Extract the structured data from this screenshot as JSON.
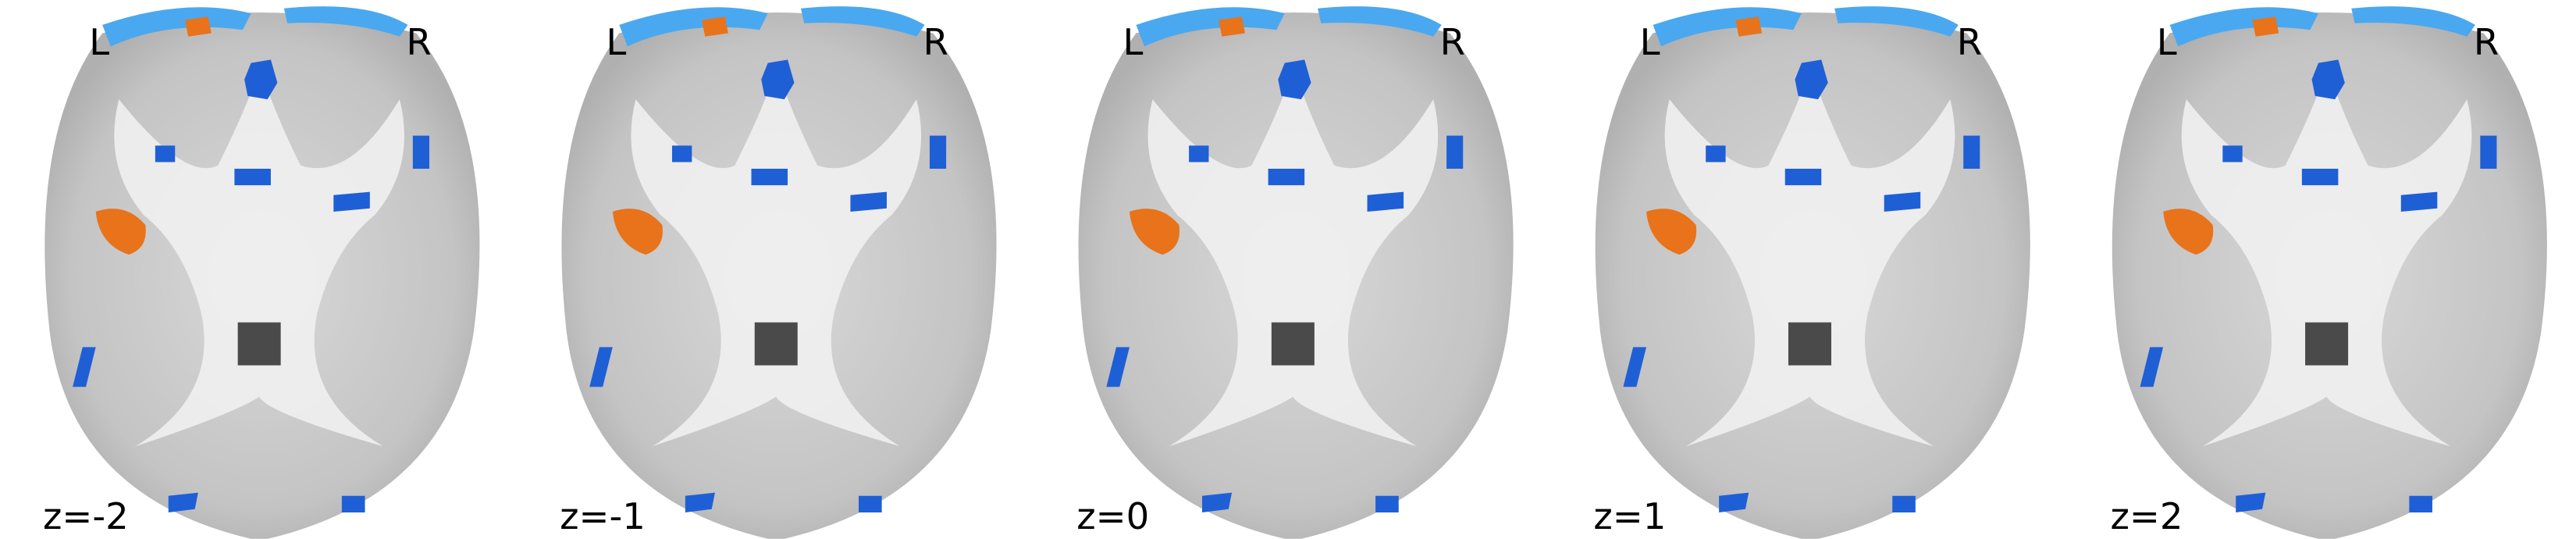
{
  "panels": [
    {
      "left": "L",
      "right": "R",
      "coord": "z=-2"
    },
    {
      "left": "L",
      "right": "R",
      "coord": "z=-1"
    },
    {
      "left": "L",
      "right": "R",
      "coord": "z=0"
    },
    {
      "left": "L",
      "right": "R",
      "coord": "z=1"
    },
    {
      "left": "L",
      "right": "R",
      "coord": "z=2"
    }
  ]
}
